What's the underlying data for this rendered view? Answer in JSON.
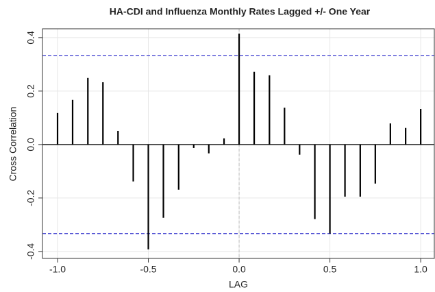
{
  "chart_data": {
    "type": "stem",
    "title": "HA-CDI and Influenza Monthly Rates Lagged +/- One Year",
    "x_label": "LAG",
    "y_label": "Cross Correlation",
    "x": [
      -1.0,
      -0.917,
      -0.833,
      -0.75,
      -0.667,
      -0.583,
      -0.5,
      -0.417,
      -0.333,
      -0.25,
      -0.167,
      -0.083,
      0.0,
      0.083,
      0.167,
      0.25,
      0.333,
      0.417,
      0.5,
      0.583,
      0.667,
      0.75,
      0.833,
      0.917,
      1.0
    ],
    "values": [
      0.118,
      0.167,
      0.249,
      0.233,
      0.051,
      -0.138,
      -0.392,
      -0.274,
      -0.169,
      -0.013,
      -0.033,
      0.023,
      0.415,
      0.272,
      0.259,
      0.138,
      -0.038,
      -0.279,
      -0.333,
      -0.195,
      -0.195,
      -0.146,
      0.079,
      0.062,
      0.133
    ],
    "color": "#000000",
    "confidence_bounds": [
      0.333,
      -0.333
    ],
    "confidence_color": "#3333cc",
    "xlim": [
      -1.083,
      1.075
    ],
    "ylim": [
      -0.426,
      0.433
    ],
    "xticks": [
      {
        "value": -1.0,
        "label": "-1.0"
      },
      -0.5,
      {
        "value": 0,
        "label": "0.0"
      },
      0.5,
      {
        "value": 1,
        "label": "1.0"
      }
    ],
    "yticks": [
      -0.4,
      -0.2,
      {
        "value": 0,
        "label": "0.0"
      },
      0.2,
      0.4
    ],
    "grid": true
  }
}
